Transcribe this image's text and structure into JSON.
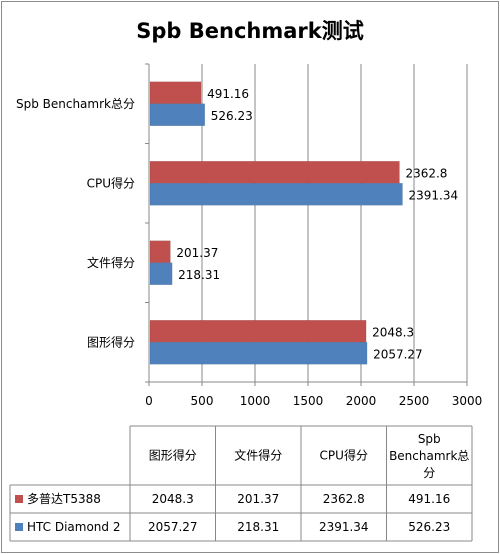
{
  "chart_data": {
    "type": "bar",
    "orientation": "horizontal",
    "title": "Spb Benchmark测试",
    "categories": [
      "Spb Benchamrk总分",
      "CPU得分",
      "文件得分",
      "图形得分"
    ],
    "series": [
      {
        "name": "多普达T5388",
        "values": [
          491.16,
          2362.8,
          201.37,
          2048.3
        ],
        "color": "#c0504d",
        "labels": [
          "491.16",
          "2362.8",
          "201.37",
          "2048.3"
        ]
      },
      {
        "name": "HTC Diamond 2",
        "values": [
          526.23,
          2391.34,
          218.31,
          2057.27
        ],
        "color": "#4f81bd",
        "labels": [
          "526.23",
          "2391.34",
          "218.31",
          "2057.27"
        ]
      }
    ],
    "xlim": [
      0,
      3000
    ],
    "xticks": [
      "0",
      "500",
      "1000",
      "1500",
      "2000",
      "2500",
      "3000"
    ],
    "grid": true,
    "legend": "data-table",
    "data_table": {
      "columns": [
        "图形得分",
        "文件得分",
        "CPU得分",
        "Spb Benchamrk总分"
      ],
      "rows": [
        {
          "series": "多普达T5388",
          "cells": [
            "2048.3",
            "201.37",
            "2362.8",
            "491.16"
          ]
        },
        {
          "series": "HTC Diamond 2",
          "cells": [
            "2057.27",
            "218.31",
            "2391.34",
            "526.23"
          ]
        }
      ]
    }
  }
}
